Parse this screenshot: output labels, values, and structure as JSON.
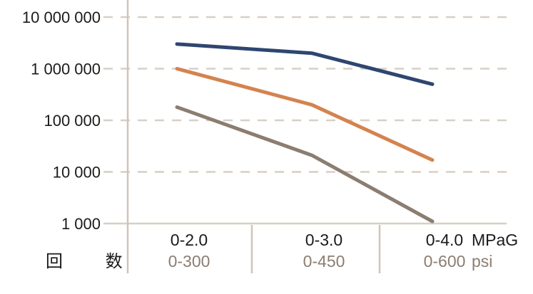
{
  "chart_data": {
    "type": "line",
    "ylabel": "回 数",
    "yscale": "log",
    "ylim": [
      1000,
      10000000
    ],
    "ytick_values": [
      1000,
      10000,
      100000,
      1000000,
      10000000
    ],
    "ytick_labels": [
      "1 000",
      "10 000",
      "100 000",
      "1 000 000",
      "10 000 000"
    ],
    "categories": [
      "0-2.0",
      "0-3.0",
      "0-4.0"
    ],
    "categories_secondary": [
      "0-300",
      "0-450",
      "0-600"
    ],
    "x_unit": "MPaG",
    "x_unit_secondary": "psi",
    "grid": true,
    "legend": "none",
    "series": [
      {
        "color": "#2e4670",
        "values": [
          3000000,
          2000000,
          500000
        ]
      },
      {
        "color": "#d4834e",
        "values": [
          1000000,
          200000,
          17000
        ]
      },
      {
        "color": "#8b7d70",
        "values": [
          180000,
          21000,
          1100
        ]
      }
    ],
    "colors": {
      "grid": "#d8cfc6",
      "axis": "#d1c4b7",
      "secondary_text": "#8c7d70"
    }
  }
}
